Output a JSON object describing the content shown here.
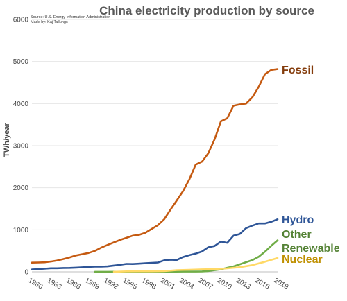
{
  "chart_data": {
    "type": "line",
    "title": "China electricity production by source",
    "source_lines": [
      "Source: U.S. Energy Information Administration",
      "Made by: Kaj Tallungs"
    ],
    "ylabel": "TWh/year",
    "xlabel": "",
    "ylim": [
      0,
      6000
    ],
    "xlim": [
      1980,
      2019
    ],
    "yticks": [
      0,
      1000,
      2000,
      3000,
      4000,
      5000,
      6000
    ],
    "xticks": [
      1980,
      1983,
      1986,
      1989,
      1992,
      1995,
      1998,
      2001,
      2004,
      2007,
      2010,
      2013,
      2016,
      2019
    ],
    "grid": true,
    "legend": "direct labels at line ends",
    "series": [
      {
        "name": "Fossil",
        "color": "#c55a11",
        "label_color": "#843c0c",
        "x": [
          1980,
          1981,
          1982,
          1983,
          1984,
          1985,
          1986,
          1987,
          1988,
          1989,
          1990,
          1991,
          1992,
          1993,
          1994,
          1995,
          1996,
          1997,
          1998,
          1999,
          2000,
          2001,
          2002,
          2003,
          2004,
          2005,
          2006,
          2007,
          2008,
          2009,
          2010,
          2011,
          2012,
          2013,
          2014,
          2015,
          2016,
          2017,
          2018,
          2019
        ],
        "values": [
          220,
          222,
          228,
          245,
          270,
          305,
          345,
          390,
          420,
          450,
          500,
          575,
          640,
          700,
          760,
          810,
          860,
          880,
          930,
          1020,
          1110,
          1250,
          1480,
          1700,
          1920,
          2200,
          2550,
          2620,
          2820,
          3150,
          3580,
          3650,
          3950,
          3980,
          4000,
          4150,
          4400,
          4700,
          4800,
          4820
        ]
      },
      {
        "name": "Hydro",
        "color": "#2e5597",
        "label_color": "#2e5597",
        "x": [
          1980,
          1981,
          1982,
          1983,
          1984,
          1985,
          1986,
          1987,
          1988,
          1989,
          1990,
          1991,
          1992,
          1993,
          1994,
          1995,
          1996,
          1997,
          1998,
          1999,
          2000,
          2001,
          2002,
          2003,
          2004,
          2005,
          2006,
          2007,
          2008,
          2009,
          2010,
          2011,
          2012,
          2013,
          2014,
          2015,
          2016,
          2017,
          2018,
          2019
        ],
        "values": [
          58,
          65,
          74,
          86,
          86,
          92,
          94,
          100,
          109,
          118,
          125,
          124,
          130,
          150,
          166,
          190,
          186,
          195,
          205,
          212,
          222,
          276,
          288,
          283,
          353,
          397,
          435,
          485,
          585,
          615,
          720,
          690,
          860,
          900,
          1040,
          1100,
          1150,
          1150,
          1190,
          1250
        ]
      },
      {
        "name": "Other Renewable",
        "color": "#70ad47",
        "label_color": "#548235",
        "x": [
          1990,
          1992,
          1994,
          1996,
          1998,
          2000,
          2002,
          2004,
          2006,
          2007,
          2008,
          2009,
          2010,
          2011,
          2012,
          2013,
          2014,
          2015,
          2016,
          2017,
          2018,
          2019
        ],
        "values": [
          2,
          2,
          3,
          3,
          4,
          5,
          5,
          6,
          7,
          10,
          18,
          40,
          60,
          95,
          130,
          180,
          230,
          280,
          360,
          480,
          620,
          750
        ]
      },
      {
        "name": "Nuclear",
        "color": "#ffd966",
        "label_color": "#bf9000",
        "x": [
          1993,
          1995,
          1997,
          1999,
          2001,
          2003,
          2005,
          2007,
          2009,
          2011,
          2013,
          2015,
          2017,
          2019
        ],
        "values": [
          2,
          12,
          14,
          14,
          17,
          42,
          50,
          60,
          66,
          83,
          110,
          160,
          240,
          330
        ]
      }
    ]
  }
}
